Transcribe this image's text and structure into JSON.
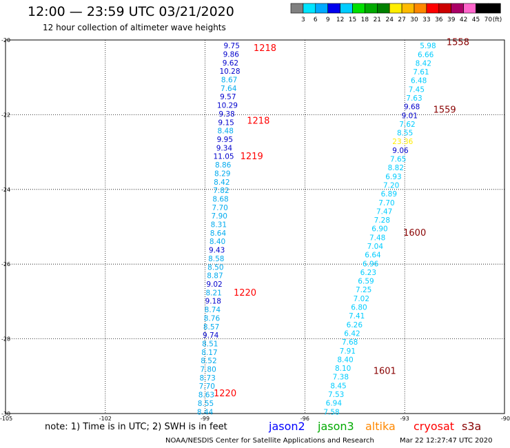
{
  "header": {
    "title": "12:00 — 23:59 UTC 03/21/2020",
    "subtitle": "12 hour collection of altimeter wave heights"
  },
  "scale": {
    "unit": "(ft)",
    "labels": [
      "3",
      "6",
      "9",
      "12",
      "15",
      "18",
      "21",
      "24",
      "27",
      "30",
      "33",
      "36",
      "39",
      "42",
      "45",
      "70"
    ],
    "colors": [
      "#808080",
      "#00e5ff",
      "#00aaff",
      "#0000ee",
      "#00ccff",
      "#00e000",
      "#00aa00",
      "#008000",
      "#ffee00",
      "#ffbb00",
      "#ff8800",
      "#ff0000",
      "#cc0000",
      "#aa0066",
      "#ff66cc",
      "#000000",
      "#000000"
    ]
  },
  "axes": {
    "lat_labels": [
      "-20",
      "-22",
      "-24",
      "-26",
      "-28",
      "-30"
    ],
    "lon_labels": [
      "-105",
      "-102",
      "-99",
      "-96",
      "-93",
      "-90"
    ]
  },
  "chart_data": {
    "type": "scatter",
    "x_axis": "longitude",
    "y_axis": "latitude",
    "xlim": [
      -105,
      -90
    ],
    "ylim": [
      -30,
      -20
    ],
    "track_west": {
      "lon_start": -98.2,
      "lon_end": -99.0,
      "values": [
        "9.75",
        "9.86",
        "9.62",
        "10.28",
        "8.67",
        "7.64",
        "9.57",
        "10.29",
        "9.38",
        "9.15",
        "8.48",
        "9.95",
        "9.34",
        "11.05",
        "8.86",
        "8.29",
        "8.42",
        "7.82",
        "8.68",
        "7.70",
        "7.90",
        "8.31",
        "8.64",
        "8.40",
        "9.43",
        "8.58",
        "8.50",
        "8.87",
        "9.02",
        "8.21",
        "9.18",
        "8.74",
        "8.76",
        "8.57",
        "9.74",
        "8.51",
        "8.17",
        "8.52",
        "7.80",
        "8.73",
        "7.70",
        "8.63",
        "8.55",
        "8.44"
      ],
      "colors": [
        "#0000cc",
        "#0000cc",
        "#0000cc",
        "#0000cc",
        "#00aaee",
        "#00aaee",
        "#0000cc",
        "#0000cc",
        "#0000cc",
        "#0000cc",
        "#00aaee",
        "#0000cc",
        "#0000cc",
        "#0000cc",
        "#00aaee",
        "#00aaee",
        "#00aaee",
        "#00aaee",
        "#00aaee",
        "#00aaee",
        "#00aaee",
        "#00aaee",
        "#00aaee",
        "#00aaee",
        "#0000cc",
        "#00aaee",
        "#00aaee",
        "#00aaee",
        "#0000cc",
        "#00aaee",
        "#0000cc",
        "#00aaee",
        "#00aaee",
        "#00aaee",
        "#0000cc",
        "#00aaee",
        "#00aaee",
        "#00aaee",
        "#00aaee",
        "#00aaee",
        "#00aaee",
        "#00aaee",
        "#00aaee",
        "#00aaee"
      ]
    },
    "track_east": {
      "lon_start": -92.3,
      "lon_end": -95.2,
      "values": [
        "5.98",
        "6.66",
        "8.42",
        "7.61",
        "6.48",
        "7.45",
        "7.63",
        "9.68",
        "9.01",
        "7.62",
        "8.55",
        "23.36",
        "9.06",
        "7.65",
        "8.82",
        "6.93",
        "7.20",
        "6.89",
        "7.70",
        "7.47",
        "7.28",
        "6.90",
        "7.48",
        "7.04",
        "6.64",
        "6.96",
        "6.23",
        "6.59",
        "7.25",
        "7.02",
        "6.80",
        "7.41",
        "6.26",
        "6.42",
        "7.68",
        "7.91",
        "8.40",
        "8.10",
        "7.38",
        "8.45",
        "7.53",
        "6.94",
        "7.58"
      ],
      "colors": [
        "#00ccff",
        "#00ccff",
        "#00ccff",
        "#00ccff",
        "#00ccff",
        "#00ccff",
        "#00ccff",
        "#0000cc",
        "#0000cc",
        "#00ccff",
        "#00ccff",
        "#ffee00",
        "#0000cc",
        "#00ccff",
        "#00ccff",
        "#00ccff",
        "#00ccff",
        "#00ccff",
        "#00ccff",
        "#00ccff",
        "#00ccff",
        "#00ccff",
        "#00ccff",
        "#00ccff",
        "#00ccff",
        "#00ccff",
        "#00ccff",
        "#00ccff",
        "#00ccff",
        "#00ccff",
        "#00ccff",
        "#00ccff",
        "#00ccff",
        "#00ccff",
        "#00ccff",
        "#00ccff",
        "#00ccff",
        "#00ccff",
        "#00ccff",
        "#00ccff",
        "#00ccff",
        "#00ccff",
        "#00ccff"
      ]
    },
    "time_labels": [
      {
        "text": "1218",
        "lon": -97.2,
        "lat": -20.2,
        "color": "#ff0000"
      },
      {
        "text": "1218",
        "lon": -97.4,
        "lat": -22.15,
        "color": "#ff0000"
      },
      {
        "text": "1219",
        "lon": -97.6,
        "lat": -23.1,
        "color": "#ff0000"
      },
      {
        "text": "1220",
        "lon": -97.8,
        "lat": -26.75,
        "color": "#ff0000"
      },
      {
        "text": "1220",
        "lon": -98.4,
        "lat": -29.45,
        "color": "#ff0000"
      },
      {
        "text": "1558",
        "lon": -91.4,
        "lat": -20.05,
        "color": "#880000"
      },
      {
        "text": "1559",
        "lon": -91.8,
        "lat": -21.85,
        "color": "#880000"
      },
      {
        "text": "1600",
        "lon": -92.7,
        "lat": -25.15,
        "color": "#880000"
      },
      {
        "text": "1601",
        "lon": -93.6,
        "lat": -28.85,
        "color": "#880000"
      }
    ]
  },
  "footer": {
    "note": "note: 1) Time is in UTC; 2) SWH is in feet",
    "legend": [
      {
        "label": "jason2",
        "color": "#0000ff"
      },
      {
        "label": "jason3",
        "color": "#00aa00"
      },
      {
        "label": "altika",
        "color": "#ff8800"
      },
      {
        "label": "cryosat",
        "color": "#ff0000"
      },
      {
        "label": "s3a",
        "color": "#880000"
      }
    ],
    "credit": "NOAA/NESDIS Center for Satellite Applications and Research",
    "timestamp": "Mar 22 12:27:47 UTC 2020"
  }
}
